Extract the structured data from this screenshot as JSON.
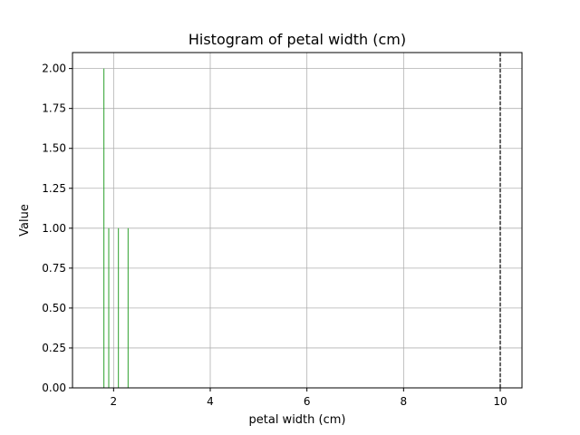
{
  "chart_data": {
    "type": "bar",
    "title": "Histogram of petal width (cm)",
    "xlabel": "petal width (cm)",
    "ylabel": "Value",
    "xlim": [
      1.15,
      10.45
    ],
    "ylim": [
      0,
      2.1
    ],
    "xticks": [
      2,
      4,
      6,
      8,
      10
    ],
    "xtick_labels": [
      "2",
      "4",
      "6",
      "8",
      "10"
    ],
    "yticks": [
      0,
      0.25,
      0.5,
      0.75,
      1.0,
      1.25,
      1.5,
      1.75,
      2.0
    ],
    "ytick_labels": [
      "0.00",
      "0.25",
      "0.50",
      "0.75",
      "1.00",
      "1.25",
      "1.50",
      "1.75",
      "2.00"
    ],
    "grid": true,
    "bars": [
      {
        "x": 1.8,
        "value": 2
      },
      {
        "x": 1.9,
        "value": 1
      },
      {
        "x": 2.1,
        "value": 1
      },
      {
        "x": 2.3,
        "value": 1
      }
    ],
    "reference_line": {
      "x": 10,
      "style": "dashed"
    },
    "colors": {
      "bar": "#2ca02c",
      "grid": "#b0b0b0",
      "axis": "#000000",
      "reference_line": "#000000"
    }
  }
}
